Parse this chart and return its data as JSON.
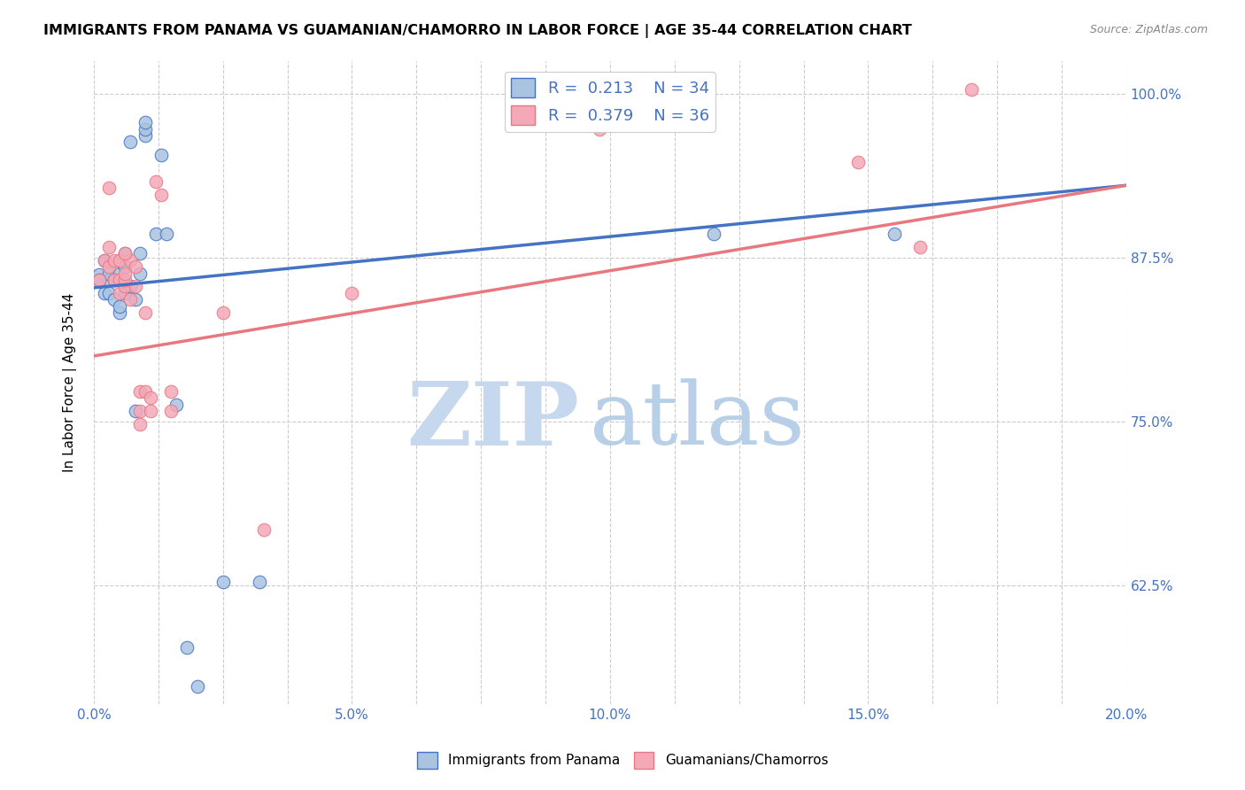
{
  "title": "IMMIGRANTS FROM PANAMA VS GUAMANIAN/CHAMORRO IN LABOR FORCE | AGE 35-44 CORRELATION CHART",
  "source": "Source: ZipAtlas.com",
  "ylabel": "In Labor Force | Age 35-44",
  "xlim": [
    0.0,
    0.2
  ],
  "ylim": [
    0.535,
    1.025
  ],
  "ytick_positions": [
    0.625,
    0.75,
    0.875,
    1.0
  ],
  "ytick_labels": [
    "62.5%",
    "75.0%",
    "87.5%",
    "100.0%"
  ],
  "blue_R": 0.213,
  "blue_N": 34,
  "pink_R": 0.379,
  "pink_N": 36,
  "blue_color": "#a8c4e0",
  "pink_color": "#f4a8b8",
  "blue_line_color": "#4472c4",
  "pink_line_color": "#e87880",
  "legend_color": "#4472c4",
  "watermark_zip": "ZIP",
  "watermark_atlas": "atlas",
  "watermark_color_zip": "#c5d8ee",
  "watermark_color_atlas": "#b8cfe8",
  "blue_scatter_x": [
    0.001,
    0.002,
    0.002,
    0.003,
    0.003,
    0.003,
    0.004,
    0.004,
    0.005,
    0.005,
    0.005,
    0.006,
    0.006,
    0.006,
    0.007,
    0.007,
    0.008,
    0.008,
    0.009,
    0.009,
    0.01,
    0.01,
    0.01,
    0.012,
    0.013,
    0.014,
    0.016,
    0.018,
    0.02,
    0.025,
    0.032,
    0.12,
    0.155,
    0.001
  ],
  "blue_scatter_y": [
    0.862,
    0.848,
    0.873,
    0.848,
    0.858,
    0.863,
    0.843,
    0.858,
    0.833,
    0.838,
    0.863,
    0.848,
    0.868,
    0.878,
    0.853,
    0.963,
    0.843,
    0.758,
    0.863,
    0.878,
    0.968,
    0.973,
    0.978,
    0.893,
    0.953,
    0.893,
    0.763,
    0.578,
    0.548,
    0.628,
    0.628,
    0.893,
    0.893,
    0.858
  ],
  "pink_scatter_x": [
    0.001,
    0.002,
    0.003,
    0.003,
    0.004,
    0.004,
    0.005,
    0.005,
    0.005,
    0.006,
    0.006,
    0.006,
    0.007,
    0.007,
    0.008,
    0.008,
    0.009,
    0.009,
    0.009,
    0.01,
    0.01,
    0.011,
    0.011,
    0.012,
    0.013,
    0.015,
    0.015,
    0.025,
    0.033,
    0.05,
    0.098,
    0.148,
    0.16,
    0.17,
    0.003,
    0.006
  ],
  "pink_scatter_y": [
    0.858,
    0.873,
    0.868,
    0.883,
    0.858,
    0.873,
    0.848,
    0.858,
    0.873,
    0.853,
    0.858,
    0.863,
    0.843,
    0.873,
    0.853,
    0.868,
    0.748,
    0.758,
    0.773,
    0.773,
    0.833,
    0.758,
    0.768,
    0.933,
    0.923,
    0.758,
    0.773,
    0.833,
    0.668,
    0.848,
    0.973,
    0.948,
    0.883,
    1.003,
    0.928,
    0.878
  ],
  "legend_fontsize": 13,
  "title_fontsize": 11.5,
  "axis_label_fontsize": 11,
  "tick_fontsize": 11
}
